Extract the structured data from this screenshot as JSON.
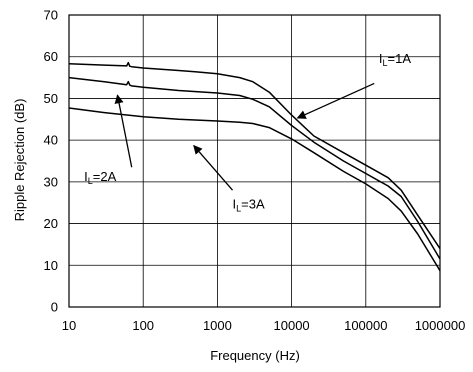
{
  "chart_data": {
    "type": "line",
    "title": "",
    "xlabel": "Frequency (Hz)",
    "ylabel": "Ripple Rejection (dB)",
    "xscale": "log",
    "xlim": [
      10,
      1000000
    ],
    "ylim": [
      0,
      70
    ],
    "grid": true,
    "legend": "none",
    "x_ticks": [
      "10",
      "100",
      "1000",
      "10000",
      "100000",
      "1000000"
    ],
    "y_ticks": [
      "0",
      "10",
      "20",
      "30",
      "40",
      "50",
      "60",
      "70"
    ],
    "series": [
      {
        "name": "IL=1A",
        "x": [
          10,
          30,
          60,
          63,
          66,
          70,
          100,
          300,
          500,
          1000,
          2000,
          3000,
          5000,
          10000,
          20000,
          50000,
          100000,
          200000,
          300000,
          500000,
          1000000
        ],
        "y": [
          58.3,
          58.0,
          57.8,
          58.6,
          57.7,
          57.6,
          57.3,
          56.7,
          56.4,
          55.9,
          55.0,
          54.0,
          51.5,
          46.0,
          41.0,
          37.0,
          34.0,
          31.0,
          28.0,
          22.0,
          14.0
        ]
      },
      {
        "name": "IL=2A",
        "x": [
          10,
          30,
          60,
          63,
          66,
          70,
          100,
          300,
          1000,
          2000,
          3000,
          5000,
          10000,
          20000,
          50000,
          100000,
          200000,
          300000,
          500000,
          1000000
        ],
        "y": [
          55.0,
          54.0,
          53.3,
          54.0,
          53.2,
          53.0,
          52.7,
          51.9,
          51.3,
          50.7,
          49.8,
          48.0,
          43.5,
          39.5,
          35.0,
          32.0,
          29.0,
          26.5,
          20.5,
          11.5
        ]
      },
      {
        "name": "IL=3A",
        "x": [
          10,
          30,
          100,
          300,
          1000,
          2000,
          3000,
          5000,
          10000,
          20000,
          50000,
          100000,
          200000,
          300000,
          500000,
          1000000
        ],
        "y": [
          47.7,
          46.6,
          45.6,
          45.0,
          44.6,
          44.3,
          44.0,
          43.0,
          40.3,
          37.0,
          32.5,
          29.5,
          26.0,
          23.0,
          17.5,
          8.7
        ]
      }
    ],
    "annotations": [
      {
        "main": "I",
        "sub": "L",
        "rest": "=1A",
        "series": "IL=1A",
        "text_x": 150000,
        "text_y": 58.5,
        "arrow_from": [
          130000,
          53.6
        ],
        "arrow_to": [
          12000,
          45.3
        ]
      },
      {
        "main": "I",
        "sub": "L",
        "rest": "=2A",
        "series": "IL=2A",
        "text_x": 16,
        "text_y": 30.2,
        "arrow_from": [
          70,
          33.5
        ],
        "arrow_to": [
          45,
          50.8
        ]
      },
      {
        "main": "I",
        "sub": "L",
        "rest": "=3A",
        "series": "IL=3A",
        "text_x": 1600,
        "text_y": 23.6,
        "arrow_from": [
          1600,
          28.0
        ],
        "arrow_to": [
          480,
          38.7
        ]
      }
    ]
  }
}
